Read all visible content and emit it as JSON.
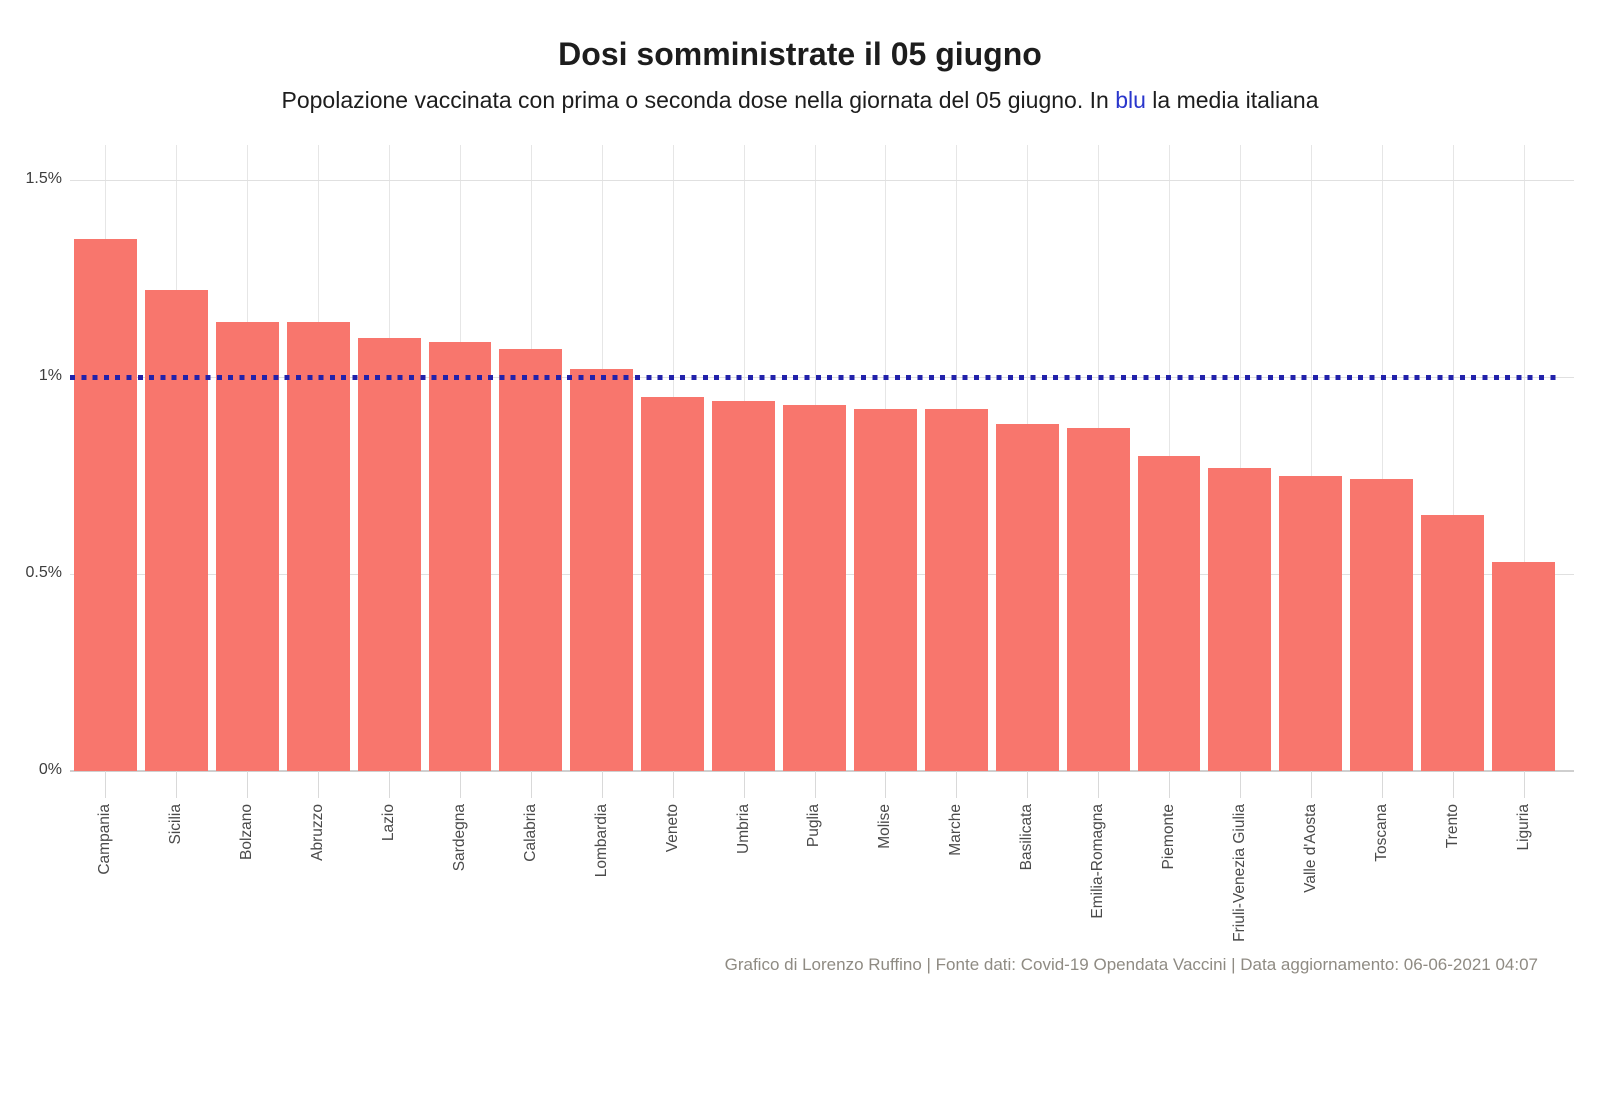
{
  "header": {
    "title": "Dosi somministrate il 05 giugno",
    "subtitle_pre": "Popolazione vaccinata con prima o seconda dose nella giornata del 05 giugno. In ",
    "subtitle_highlight": "blu",
    "subtitle_post": " la media italiana"
  },
  "footer": {
    "credit": "Grafico di Lorenzo Ruffino | Fonte dati: Covid-19 Opendata Vaccini | Data aggiornamento: 06-06-2021 04:07"
  },
  "colors": {
    "bar": "#f8766d",
    "average_line": "#2222ab",
    "subtitle_highlight": "#2936cc",
    "title_text": "#1d1d1d",
    "gridline": "#e0e0e0",
    "axis_line": "#cfcfcf",
    "axis_label": "#4a4a4a",
    "footer_text": "#8f8b83"
  },
  "chart_data": {
    "type": "bar",
    "title": "Dosi somministrate il 05 giugno",
    "subtitle": "Popolazione vaccinata con prima o seconda dose nella giornata del 05 giugno. In blu la media italiana",
    "unit": "%",
    "categories": [
      "Campania",
      "Sicilia",
      "Bolzano",
      "Abruzzo",
      "Lazio",
      "Sardegna",
      "Calabria",
      "Lombardia",
      "Veneto",
      "Umbria",
      "Puglia",
      "Molise",
      "Marche",
      "Basilicata",
      "Emilia-Romagna",
      "Piemonte",
      "Friuli-Venezia Giulia",
      "Valle d'Aosta",
      "Toscana",
      "Trento",
      "Liguria"
    ],
    "values": [
      1.35,
      1.22,
      1.14,
      1.14,
      1.1,
      1.09,
      1.07,
      1.02,
      0.95,
      0.94,
      0.93,
      0.92,
      0.92,
      0.88,
      0.87,
      0.8,
      0.77,
      0.75,
      0.74,
      0.65,
      0.53
    ],
    "y_ticks": [
      {
        "value": 0,
        "label": "0%"
      },
      {
        "value": 0.5,
        "label": "0.5%"
      },
      {
        "value": 1,
        "label": "1%"
      },
      {
        "value": 1.5,
        "label": "1.5%"
      }
    ],
    "ylim": [
      0,
      1.59
    ],
    "xlabel": "",
    "ylabel": "",
    "grid": true,
    "legend": "none",
    "reference_line": {
      "value": 1.0,
      "meaning": "media italiana",
      "style": "dotted"
    }
  }
}
